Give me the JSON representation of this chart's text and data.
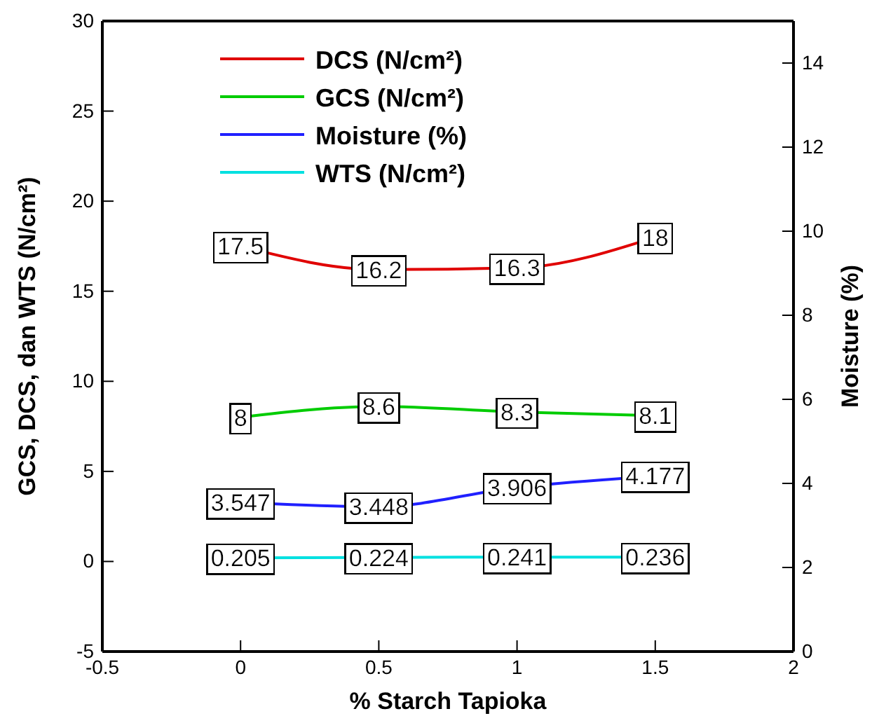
{
  "chart_data": {
    "type": "line",
    "xlabel": "% Starch Tapioka",
    "ylabel": "GCS, DCS, dan WTS (N/cm²)",
    "y2label": "Moisture (%)",
    "x": [
      0,
      0.5,
      1,
      1.5
    ],
    "series": [
      {
        "name": "DCS (N/cm²)",
        "color": "#e00000",
        "values": [
          17.5,
          16.2,
          16.3,
          18
        ]
      },
      {
        "name": "GCS (N/cm²)",
        "color": "#00cc00",
        "values": [
          8,
          8.6,
          8.3,
          8.1
        ]
      },
      {
        "name": "Moisture (%)",
        "color": "#2020ff",
        "axis": "y2",
        "values": [
          3.547,
          3.448,
          3.906,
          4.177
        ]
      },
      {
        "name": "WTS (N/cm²)",
        "color": "#00e0e0",
        "values": [
          0.205,
          0.224,
          0.241,
          0.236
        ]
      }
    ],
    "xlim": [
      -0.5,
      2
    ],
    "xticks": [
      -0.5,
      0,
      0.5,
      1,
      1.5,
      2
    ],
    "ylim": [
      -5,
      30
    ],
    "yticks": [
      -5,
      0,
      5,
      10,
      15,
      20,
      25,
      30
    ],
    "y2lim": [
      0,
      15
    ],
    "y2ticks": [
      0,
      2,
      4,
      6,
      8,
      10,
      12,
      14
    ],
    "data_labels": true,
    "legend": "top left",
    "grid": false,
    "line_style": "solid"
  }
}
